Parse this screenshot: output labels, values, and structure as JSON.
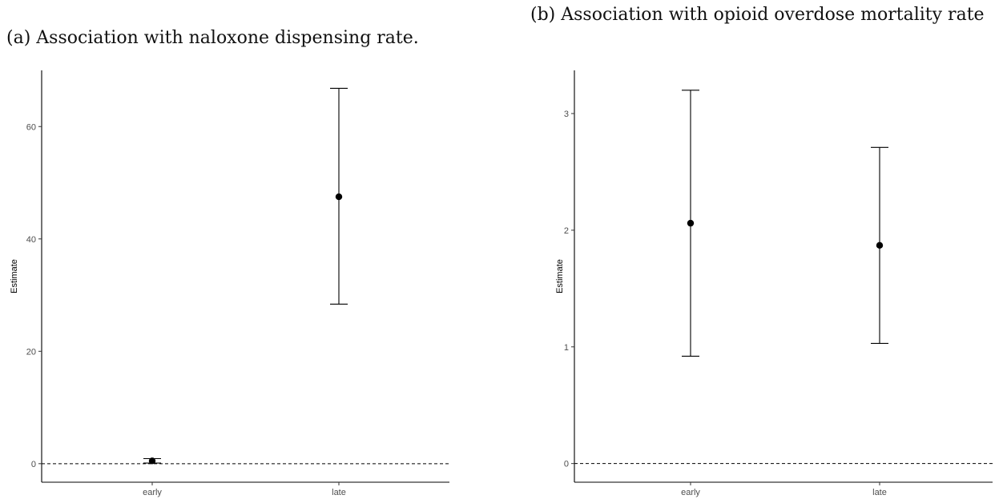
{
  "panels": [
    {
      "caption": "(a) Association with naloxone dispensing rate.",
      "chart_data": {
        "type": "errorbar",
        "ylabel": "Estimate",
        "xlabel": "",
        "categories": [
          "early",
          "late"
        ],
        "estimates": [
          0.5,
          47.5
        ],
        "lower": [
          0.1,
          28.4
        ],
        "upper": [
          0.9,
          66.8
        ],
        "yticks": [
          0,
          20,
          40,
          60
        ],
        "ylim": [
          -3.3,
          70.0
        ],
        "reference_line": 0,
        "grid": false
      }
    },
    {
      "caption": "(b) Association with opioid overdose mortality rate",
      "chart_data": {
        "type": "errorbar",
        "ylabel": "Estimate",
        "xlabel": "",
        "categories": [
          "early",
          "late"
        ],
        "estimates": [
          2.06,
          1.87
        ],
        "lower": [
          0.92,
          1.03
        ],
        "upper": [
          3.2,
          2.71
        ],
        "yticks": [
          0,
          1,
          2,
          3
        ],
        "ylim": [
          -0.16,
          3.37
        ],
        "reference_line": 0,
        "grid": false
      }
    }
  ]
}
